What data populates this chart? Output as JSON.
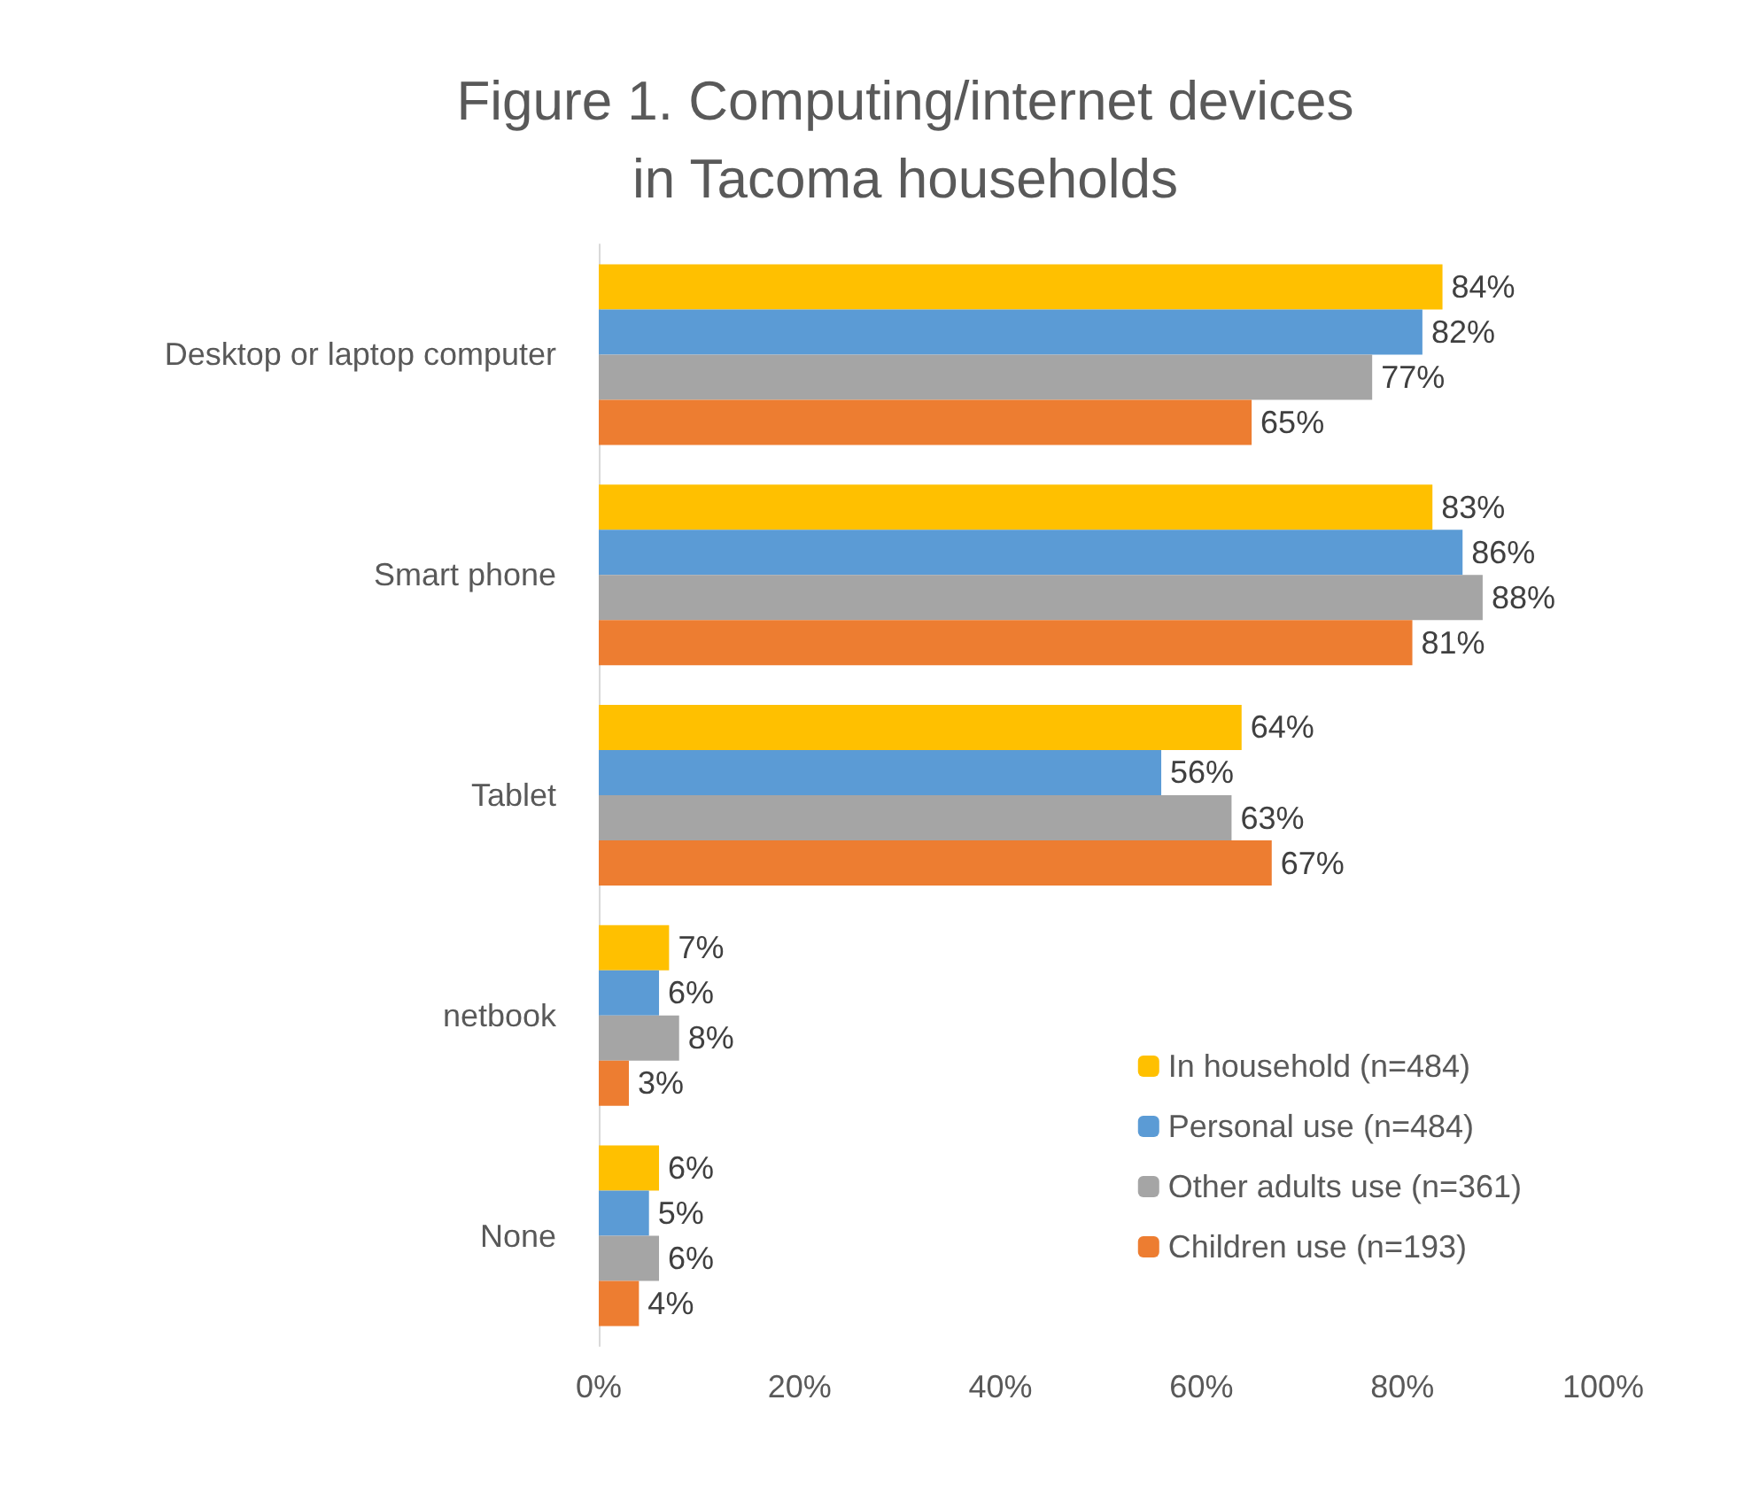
{
  "chart_data": {
    "type": "bar",
    "orientation": "horizontal",
    "title": "Figure 1. Computing/internet devices\nin Tacoma households",
    "categories": [
      "Desktop or laptop computer",
      "Smart phone",
      "Tablet",
      "netbook",
      "None"
    ],
    "series": [
      {
        "name": "In household (n=484)",
        "color": "#ffc000",
        "values": [
          84,
          83,
          64,
          7,
          6
        ],
        "value_labels": [
          "84%",
          "83%",
          "64%",
          "7%",
          "6%"
        ]
      },
      {
        "name": "Personal use (n=484)",
        "color": "#5b9bd5",
        "values": [
          82,
          86,
          56,
          6,
          5
        ],
        "value_labels": [
          "82%",
          "86%",
          "56%",
          "6%",
          "5%"
        ]
      },
      {
        "name": "Other adults use (n=361)",
        "color": "#a5a5a5",
        "values": [
          77,
          88,
          63,
          8,
          6
        ],
        "value_labels": [
          "77%",
          "88%",
          "63%",
          "8%",
          "6%"
        ]
      },
      {
        "name": "Children use (n=193)",
        "color": "#ed7d31",
        "values": [
          65,
          81,
          67,
          3,
          4
        ],
        "value_labels": [
          "65%",
          "81%",
          "67%",
          "3%",
          "4%"
        ]
      }
    ],
    "xlim": [
      0,
      100
    ],
    "xticks": [
      {
        "value": 0,
        "label": "0%"
      },
      {
        "value": 20,
        "label": "20%"
      },
      {
        "value": 40,
        "label": "40%"
      },
      {
        "value": 60,
        "label": "60%"
      },
      {
        "value": 80,
        "label": "80%"
      },
      {
        "value": 100,
        "label": "100%"
      }
    ],
    "grid": false,
    "legend": "bottom right"
  }
}
